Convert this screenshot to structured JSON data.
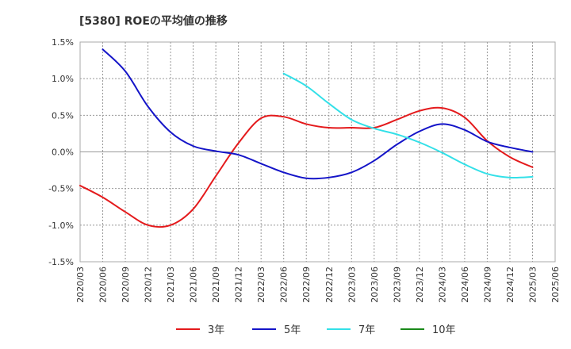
{
  "chart_data": {
    "type": "line",
    "title": "[5380]  ROEの平均値の推移",
    "xlabel": "",
    "ylabel": "",
    "ylim": [
      -1.5,
      1.5
    ],
    "yticks": [
      1.5,
      1.0,
      0.5,
      0.0,
      -0.5,
      -1.0,
      -1.5
    ],
    "ytick_labels": [
      "1.5%",
      "1.0%",
      "0.5%",
      "0.0%",
      "-0.5%",
      "-1.0%",
      "-1.5%"
    ],
    "x": [
      "2020/03",
      "2020/06",
      "2020/09",
      "2020/12",
      "2021/03",
      "2021/06",
      "2021/09",
      "2021/12",
      "2022/03",
      "2022/06",
      "2022/09",
      "2022/12",
      "2023/03",
      "2023/06",
      "2023/09",
      "2023/12",
      "2024/03",
      "2024/06",
      "2024/09",
      "2024/12",
      "2025/03",
      "2025/06"
    ],
    "grid": true,
    "legend_position": "bottom",
    "series": [
      {
        "name": "3年",
        "color": "#e41a1c",
        "values": [
          -0.46,
          -0.62,
          -0.82,
          -1.0,
          -1.0,
          -0.78,
          -0.33,
          0.12,
          0.46,
          0.48,
          0.38,
          0.33,
          0.33,
          0.33,
          0.44,
          0.56,
          0.6,
          0.47,
          0.15,
          -0.07,
          -0.21,
          null
        ]
      },
      {
        "name": "5年",
        "color": "#1414c8",
        "values": [
          null,
          1.4,
          1.1,
          0.62,
          0.27,
          0.08,
          0.01,
          -0.04,
          -0.16,
          -0.28,
          -0.36,
          -0.35,
          -0.28,
          -0.12,
          0.1,
          0.28,
          0.38,
          0.3,
          0.14,
          0.06,
          0.0,
          null
        ]
      },
      {
        "name": "7年",
        "color": "#33e0e8",
        "values": [
          null,
          null,
          null,
          null,
          null,
          null,
          null,
          null,
          null,
          1.07,
          0.9,
          0.66,
          0.44,
          0.32,
          0.24,
          0.13,
          -0.01,
          -0.17,
          -0.3,
          -0.35,
          -0.34,
          null
        ]
      },
      {
        "name": "10年",
        "color": "#1a8a1a",
        "values": [
          null,
          null,
          null,
          null,
          null,
          null,
          null,
          null,
          null,
          null,
          null,
          null,
          null,
          null,
          null,
          null,
          null,
          null,
          null,
          null,
          null,
          null
        ]
      }
    ]
  }
}
